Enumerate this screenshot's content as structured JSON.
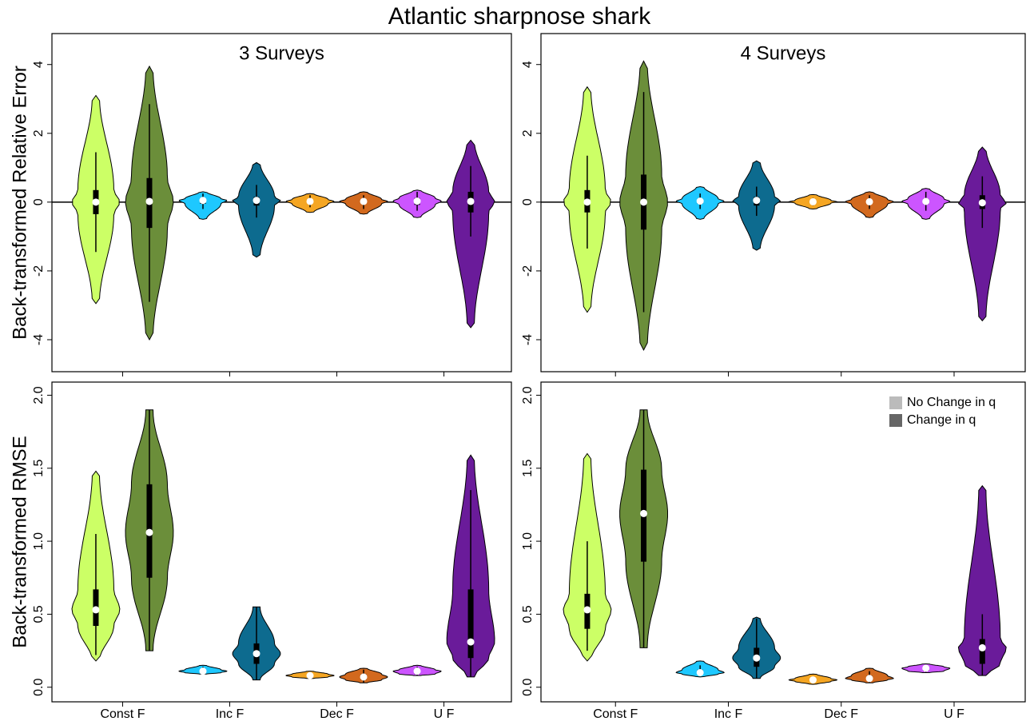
{
  "title": "Atlantic sharpnose shark",
  "chart_data": [
    {
      "type": "violin",
      "title": "3 Surveys",
      "ylabel": "Back-transformed Relative Error",
      "hline": 0,
      "ylim": [
        -4.93,
        4.9
      ],
      "yticks": [
        -4,
        -2,
        0,
        2,
        4
      ],
      "categories": [
        null,
        null,
        null,
        null
      ],
      "series": [
        {
          "color": "#bbbbbb",
          "colors": [
            "#ccff66",
            "#1ec8ff",
            "#f5a623",
            "#cc55ff"
          ],
          "min": [
            -2.95,
            -0.5,
            -0.3,
            -0.45
          ],
          "lower": [
            -1.45,
            -0.2,
            -0.15,
            -0.25
          ],
          "q1": [
            -0.35,
            -0.05,
            -0.05,
            -0.08
          ],
          "median": [
            0,
            0.05,
            0.02,
            0.03
          ],
          "q3": [
            0.35,
            0.1,
            0.08,
            0.12
          ],
          "upper": [
            1.45,
            0.25,
            0.2,
            0.3
          ],
          "max": [
            3.1,
            0.3,
            0.25,
            0.35
          ]
        },
        {
          "color": "#666666",
          "colors": [
            "#6b8e3a",
            "#0d6b8f",
            "#d2691e",
            "#6a1b9a"
          ],
          "min": [
            -4.0,
            -1.6,
            -0.35,
            -3.65
          ],
          "lower": [
            -2.9,
            -0.45,
            -0.2,
            -1.0
          ],
          "q1": [
            -0.75,
            -0.1,
            -0.05,
            -0.3
          ],
          "median": [
            0.02,
            0.05,
            0.02,
            0.02
          ],
          "q3": [
            0.7,
            0.15,
            0.08,
            0.3
          ],
          "upper": [
            2.85,
            0.5,
            0.2,
            1.05
          ],
          "max": [
            3.95,
            1.15,
            0.3,
            1.8
          ]
        }
      ]
    },
    {
      "type": "violin",
      "title": "4 Surveys",
      "hline": 0,
      "ylim": [
        -4.93,
        4.9
      ],
      "yticks": [
        -4,
        -2,
        0,
        2,
        4
      ],
      "categories": [
        null,
        null,
        null,
        null
      ],
      "series": [
        {
          "color": "#bbbbbb",
          "colors": [
            "#ccff66",
            "#1ec8ff",
            "#f5a623",
            "#cc55ff"
          ],
          "min": [
            -3.2,
            -0.5,
            -0.2,
            -0.5
          ],
          "lower": [
            -1.35,
            -0.2,
            -0.1,
            -0.25
          ],
          "q1": [
            -0.3,
            -0.05,
            -0.03,
            -0.06
          ],
          "median": [
            0,
            0.03,
            0.01,
            0.02
          ],
          "q3": [
            0.35,
            0.1,
            0.05,
            0.1
          ],
          "upper": [
            1.35,
            0.25,
            0.12,
            0.3
          ],
          "max": [
            3.35,
            0.45,
            0.22,
            0.4
          ]
        },
        {
          "color": "#666666",
          "colors": [
            "#6b8e3a",
            "#0d6b8f",
            "#d2691e",
            "#6a1b9a"
          ],
          "min": [
            -4.3,
            -1.4,
            -0.45,
            -3.45
          ],
          "lower": [
            -3.2,
            -0.4,
            -0.2,
            -0.75
          ],
          "q1": [
            -0.8,
            -0.1,
            -0.06,
            -0.2
          ],
          "median": [
            0,
            0.05,
            0.01,
            -0.02
          ],
          "q3": [
            0.8,
            0.15,
            0.08,
            0.2
          ],
          "upper": [
            3.2,
            0.45,
            0.2,
            0.75
          ],
          "max": [
            4.1,
            1.2,
            0.3,
            1.6
          ]
        }
      ]
    },
    {
      "type": "violin",
      "ylabel": "Back-transformed RMSE",
      "ylim": [
        -0.1,
        2.09
      ],
      "yticks": [
        {
          "value": 0,
          "label": "0.0"
        },
        0.5,
        {
          "value": 1,
          "label": "1.0"
        },
        1.5,
        {
          "value": 2,
          "label": "2.0"
        }
      ],
      "categories": [
        "Const F",
        "Inc F",
        "Dec F",
        "U F"
      ],
      "series": [
        {
          "color": "#bbbbbb",
          "colors": [
            "#ccff66",
            "#1ec8ff",
            "#f5a623",
            "#cc55ff"
          ],
          "min": [
            0.18,
            0.09,
            0.06,
            0.08
          ],
          "lower": [
            0.22,
            0.09,
            0.06,
            0.08
          ],
          "q1": [
            0.42,
            0.1,
            0.07,
            0.09
          ],
          "median": [
            0.53,
            0.11,
            0.08,
            0.11
          ],
          "q3": [
            0.67,
            0.12,
            0.09,
            0.12
          ],
          "upper": [
            1.05,
            0.14,
            0.1,
            0.14
          ],
          "max": [
            1.48,
            0.15,
            0.11,
            0.15
          ]
        },
        {
          "color": "#666666",
          "colors": [
            "#6b8e3a",
            "#0d6b8f",
            "#d2691e",
            "#6a1b9a"
          ],
          "min": [
            0.25,
            0.05,
            0.03,
            0.07
          ],
          "lower": [
            0.25,
            0.05,
            0.03,
            0.07
          ],
          "q1": [
            0.75,
            0.16,
            0.05,
            0.2
          ],
          "median": [
            1.06,
            0.23,
            0.07,
            0.31
          ],
          "q3": [
            1.39,
            0.3,
            0.09,
            0.67
          ],
          "upper": [
            1.9,
            0.55,
            0.12,
            1.35
          ],
          "max": [
            1.9,
            0.55,
            0.13,
            1.59
          ]
        }
      ]
    },
    {
      "type": "violin",
      "legend": "top-right",
      "ylim": [
        -0.1,
        2.09
      ],
      "yticks": [
        {
          "value": 0,
          "label": "0.0"
        },
        0.5,
        {
          "value": 1,
          "label": "1.0"
        },
        1.5,
        {
          "value": 2,
          "label": "2.0"
        }
      ],
      "categories": [
        "Const F",
        "Inc F",
        "Dec F",
        "U F"
      ],
      "series": [
        {
          "name": "No Change in q",
          "color": "#bbbbbb",
          "colors": [
            "#ccff66",
            "#1ec8ff",
            "#f5a623",
            "#cc55ff"
          ],
          "min": [
            0.18,
            0.07,
            0.02,
            0.1
          ],
          "lower": [
            0.25,
            0.08,
            0.03,
            0.1
          ],
          "q1": [
            0.4,
            0.09,
            0.04,
            0.11
          ],
          "median": [
            0.53,
            0.1,
            0.05,
            0.13
          ],
          "q3": [
            0.64,
            0.12,
            0.06,
            0.14
          ],
          "upper": [
            1.0,
            0.15,
            0.07,
            0.15
          ],
          "max": [
            1.6,
            0.18,
            0.09,
            0.16
          ]
        },
        {
          "name": "Change in q",
          "color": "#666666",
          "colors": [
            "#6b8e3a",
            "#0d6b8f",
            "#d2691e",
            "#6a1b9a"
          ],
          "min": [
            0.27,
            0.06,
            0.03,
            0.08
          ],
          "lower": [
            0.27,
            0.06,
            0.03,
            0.08
          ],
          "q1": [
            0.86,
            0.14,
            0.05,
            0.16
          ],
          "median": [
            1.19,
            0.2,
            0.06,
            0.27
          ],
          "q3": [
            1.49,
            0.27,
            0.08,
            0.33
          ],
          "upper": [
            1.9,
            0.47,
            0.11,
            0.5
          ],
          "max": [
            1.9,
            0.48,
            0.13,
            1.38
          ]
        }
      ]
    }
  ]
}
